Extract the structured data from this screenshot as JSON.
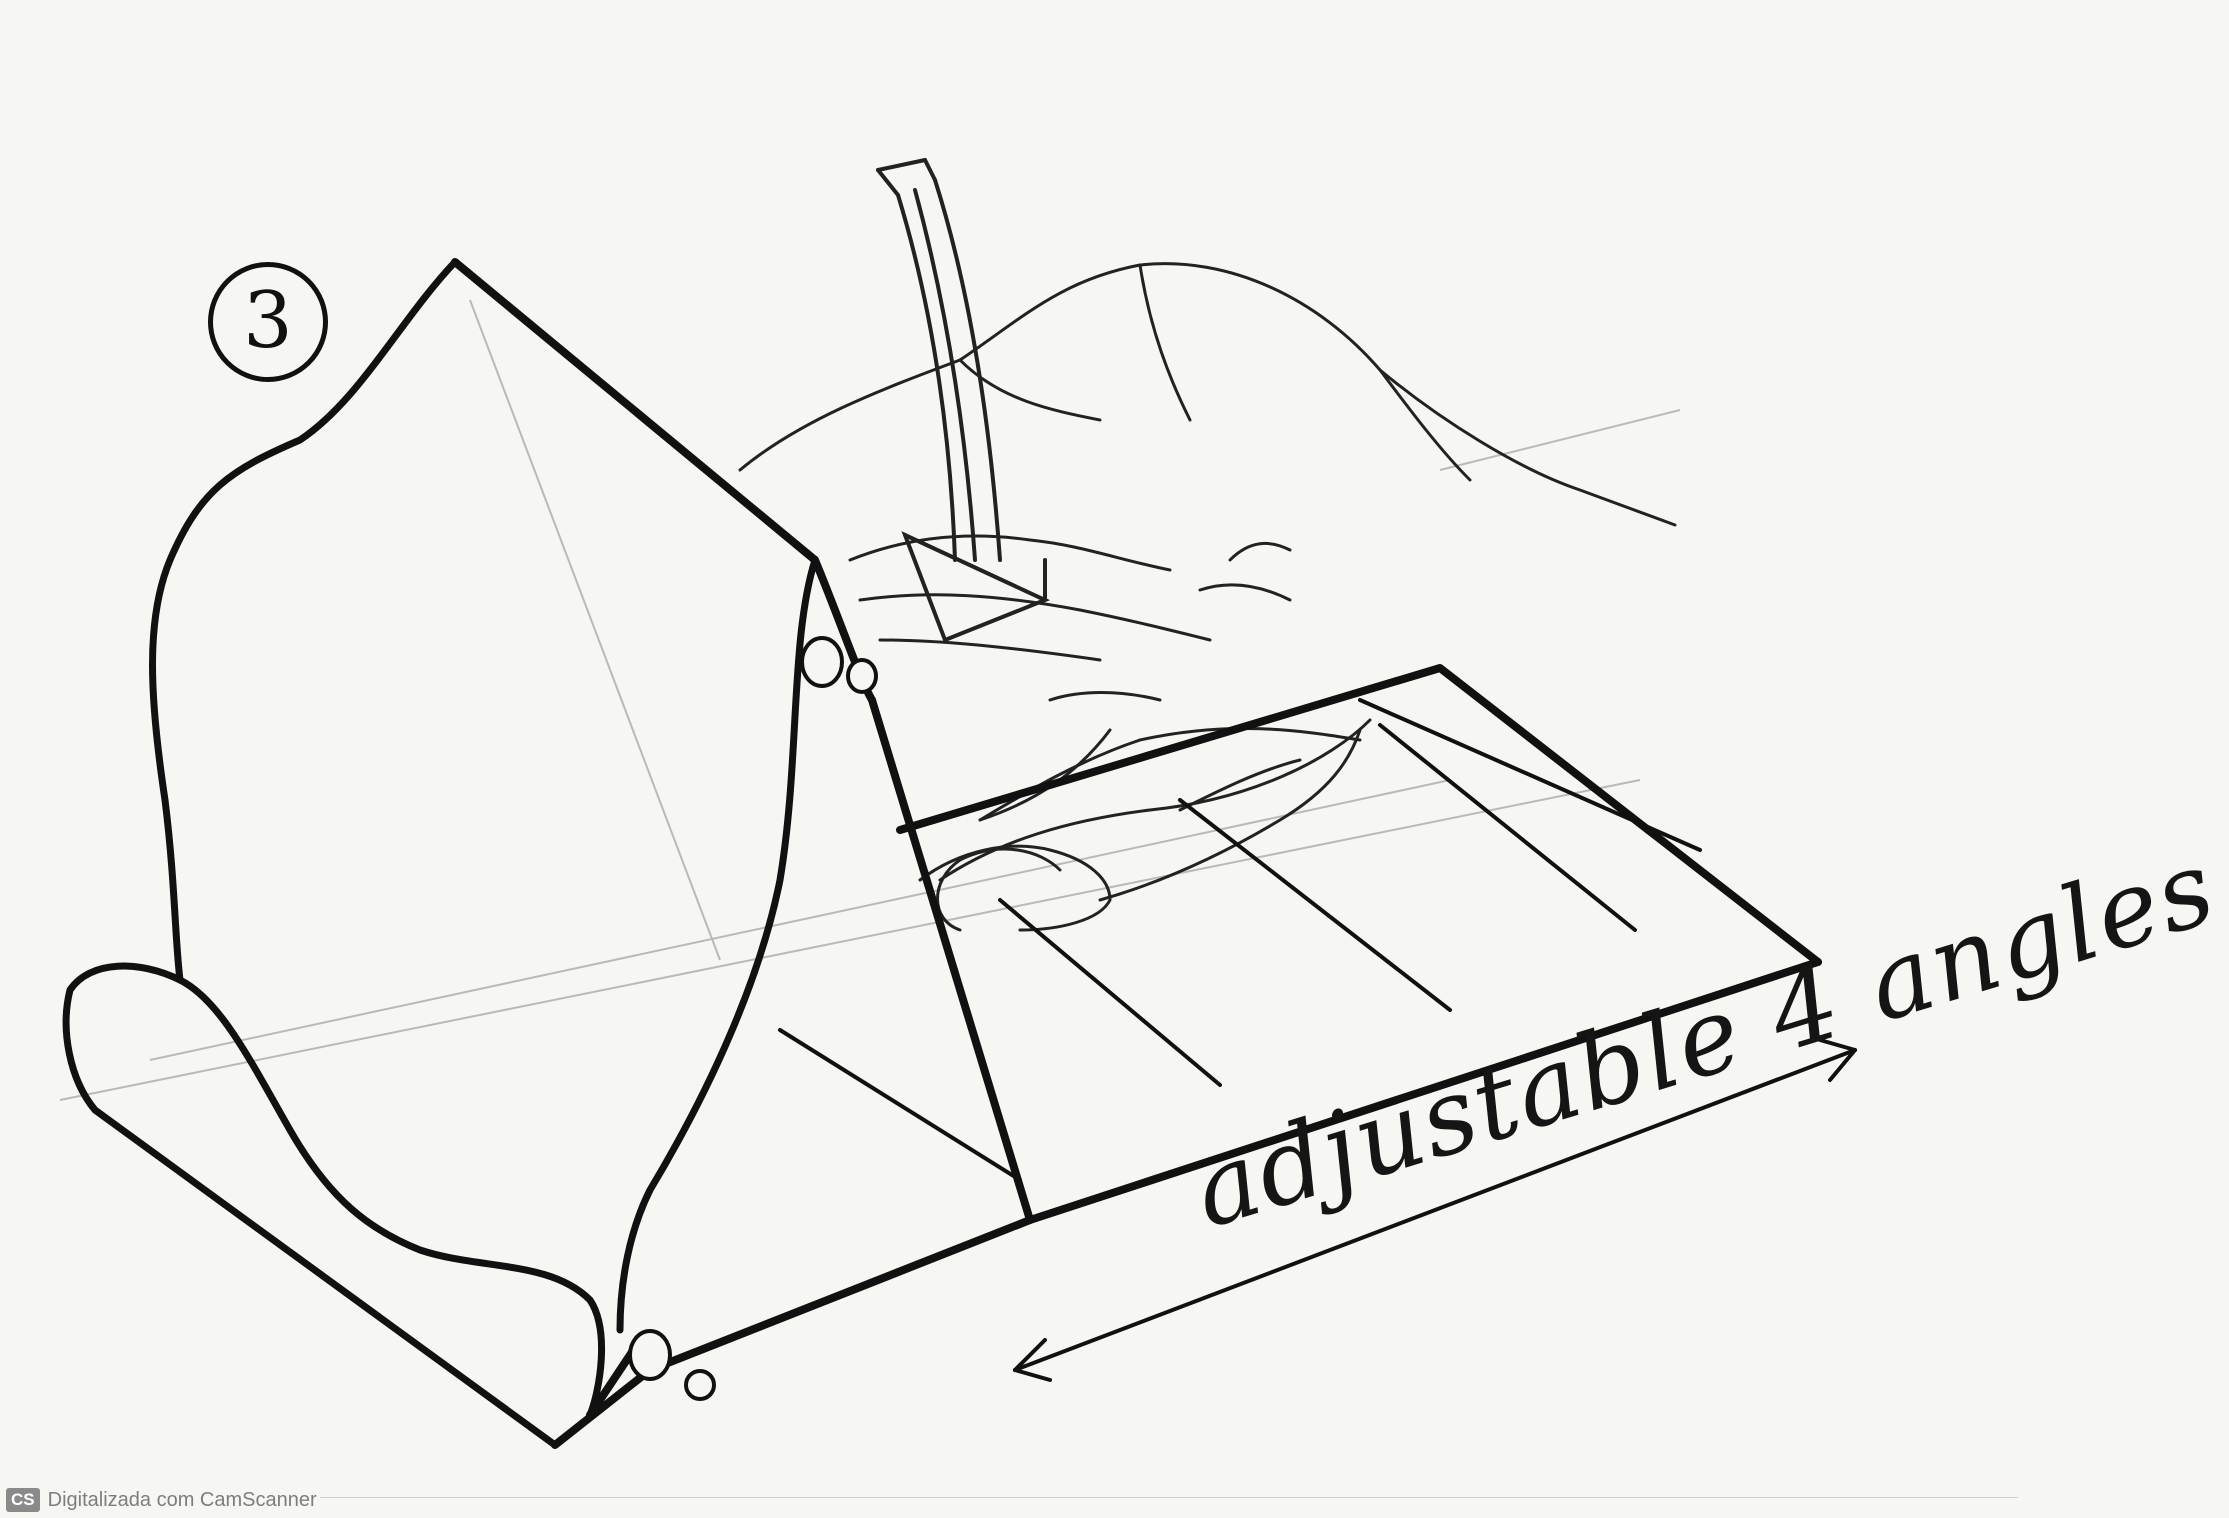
{
  "step": {
    "number": "3"
  },
  "caption": {
    "text": "adjustable 4 angles"
  },
  "footer": {
    "badge": "CS",
    "text": "Digitalizada com CamScanner"
  }
}
